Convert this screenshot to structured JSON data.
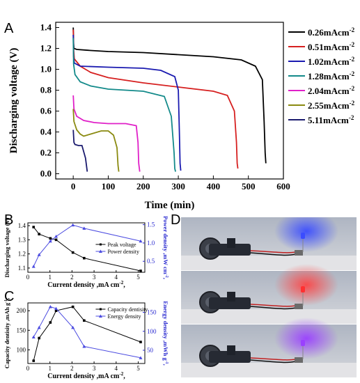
{
  "panel_labels": {
    "a": "A",
    "b": "B",
    "c": "C",
    "d": "D"
  },
  "chart_data": [
    {
      "type": "line",
      "panel": "A",
      "xlabel": "Time (min)",
      "ylabel": "Discharging voltage (V)",
      "xlim": [
        -50,
        600
      ],
      "ylim": [
        -0.05,
        1.45
      ],
      "xticks": [
        0,
        100,
        200,
        300,
        400,
        500,
        600
      ],
      "yticks": [
        0.0,
        0.2,
        0.4,
        0.6,
        0.8,
        1.0,
        1.2,
        1.4
      ],
      "legend_position": "right",
      "series": [
        {
          "name": "0.26mAcm-2",
          "color": "#000000",
          "x": [
            0,
            1,
            2,
            10,
            50,
            100,
            200,
            300,
            400,
            480,
            520,
            540,
            545,
            548,
            550
          ],
          "y": [
            1.4,
            1.25,
            1.2,
            1.19,
            1.18,
            1.17,
            1.16,
            1.14,
            1.12,
            1.09,
            1.03,
            0.9,
            0.5,
            0.2,
            0.1
          ]
        },
        {
          "name": "0.51mAcm-2",
          "color": "#d62020",
          "x": [
            0,
            1,
            3,
            20,
            50,
            100,
            200,
            300,
            400,
            440,
            460,
            466,
            468,
            470
          ],
          "y": [
            1.38,
            1.2,
            1.1,
            1.03,
            0.97,
            0.92,
            0.87,
            0.83,
            0.79,
            0.75,
            0.6,
            0.3,
            0.1,
            0.05
          ]
        },
        {
          "name": "1.02mAcm-2",
          "color": "#1a1ab0",
          "x": [
            0,
            1,
            3,
            20,
            100,
            200,
            250,
            290,
            300,
            303,
            305,
            307
          ],
          "y": [
            1.33,
            1.12,
            1.06,
            1.03,
            1.02,
            1.01,
            0.99,
            0.93,
            0.8,
            0.4,
            0.1,
            0.03
          ]
        },
        {
          "name": "1.28mAcm-2",
          "color": "#138a8a",
          "x": [
            0,
            1,
            5,
            20,
            50,
            100,
            200,
            260,
            280,
            288,
            290,
            292
          ],
          "y": [
            1.3,
            1.05,
            0.95,
            0.88,
            0.84,
            0.81,
            0.79,
            0.74,
            0.55,
            0.2,
            0.05,
            0.02
          ]
        },
        {
          "name": "2.04mAcm-2",
          "color": "#e020c8",
          "x": [
            0,
            2,
            10,
            30,
            60,
            100,
            150,
            180,
            185,
            187,
            190
          ],
          "y": [
            0.75,
            0.62,
            0.55,
            0.51,
            0.49,
            0.48,
            0.48,
            0.46,
            0.3,
            0.1,
            0.02
          ]
        },
        {
          "name": "2.55mAcm-2",
          "color": "#8a8a10",
          "x": [
            0,
            2,
            10,
            20,
            30,
            50,
            80,
            100,
            115,
            125,
            128,
            130
          ],
          "y": [
            0.62,
            0.5,
            0.42,
            0.38,
            0.36,
            0.38,
            0.41,
            0.41,
            0.37,
            0.25,
            0.08,
            0.02
          ]
        },
        {
          "name": "5.11mAcm-2",
          "color": "#1a1a6e",
          "x": [
            0,
            2,
            5,
            15,
            25,
            35,
            40
          ],
          "y": [
            0.42,
            0.3,
            0.28,
            0.27,
            0.27,
            0.15,
            0.02
          ]
        }
      ]
    },
    {
      "type": "line",
      "panel": "B",
      "xlabel": "Current density ,mA cm-2,",
      "ylabel": "Discharging voltage (V)",
      "y2label": "Power density ,mW cm-2,",
      "xlim": [
        0,
        5.3
      ],
      "ylim": [
        1.07,
        1.42
      ],
      "y2lim": [
        0.2,
        1.55
      ],
      "xticks": [
        0,
        1,
        2,
        3,
        4,
        5
      ],
      "yticks": [
        1.1,
        1.2,
        1.3,
        1.4
      ],
      "y2ticks": [
        0.5,
        1.0,
        1.5
      ],
      "x": [
        0.26,
        0.51,
        1.02,
        1.28,
        2.04,
        2.55,
        5.11
      ],
      "series": [
        {
          "name": "Peak voltage",
          "color": "#000000",
          "axis": "left",
          "marker": "square",
          "values": [
            1.39,
            1.34,
            1.31,
            1.3,
            1.21,
            1.17,
            1.08
          ]
        },
        {
          "name": "Power density",
          "color": "#4a4ae0",
          "axis": "right",
          "marker": "triangle",
          "values": [
            0.36,
            0.68,
            1.05,
            1.18,
            1.49,
            1.4,
            1.05
          ]
        }
      ]
    },
    {
      "type": "line",
      "panel": "C",
      "xlabel": "Current density ,mA cm-2,",
      "ylabel": "Capacity dentisity ,mAh g-1,",
      "y2label": "Energy density ,mWh g-1,",
      "xlim": [
        0,
        5.3
      ],
      "ylim": [
        65,
        220
      ],
      "y2lim": [
        15,
        175
      ],
      "xticks": [
        0,
        1,
        2,
        3,
        4,
        5
      ],
      "yticks": [
        100,
        150,
        200
      ],
      "y2ticks": [
        50,
        100,
        150
      ],
      "x": [
        0.26,
        0.51,
        1.02,
        1.28,
        2.04,
        2.55,
        5.11
      ],
      "series": [
        {
          "name": "Capacity dentisity",
          "color": "#000000",
          "axis": "left",
          "marker": "square",
          "values": [
            72,
            130,
            170,
            200,
            210,
            175,
            120
          ]
        },
        {
          "name": "Energy density",
          "color": "#4a4ae0",
          "axis": "right",
          "marker": "triangle",
          "values": [
            85,
            110,
            165,
            160,
            110,
            60,
            30
          ]
        }
      ]
    }
  ],
  "photo_panel": {
    "led_colors": [
      "#3a4cff",
      "#ff3030",
      "#9a40ff"
    ]
  }
}
